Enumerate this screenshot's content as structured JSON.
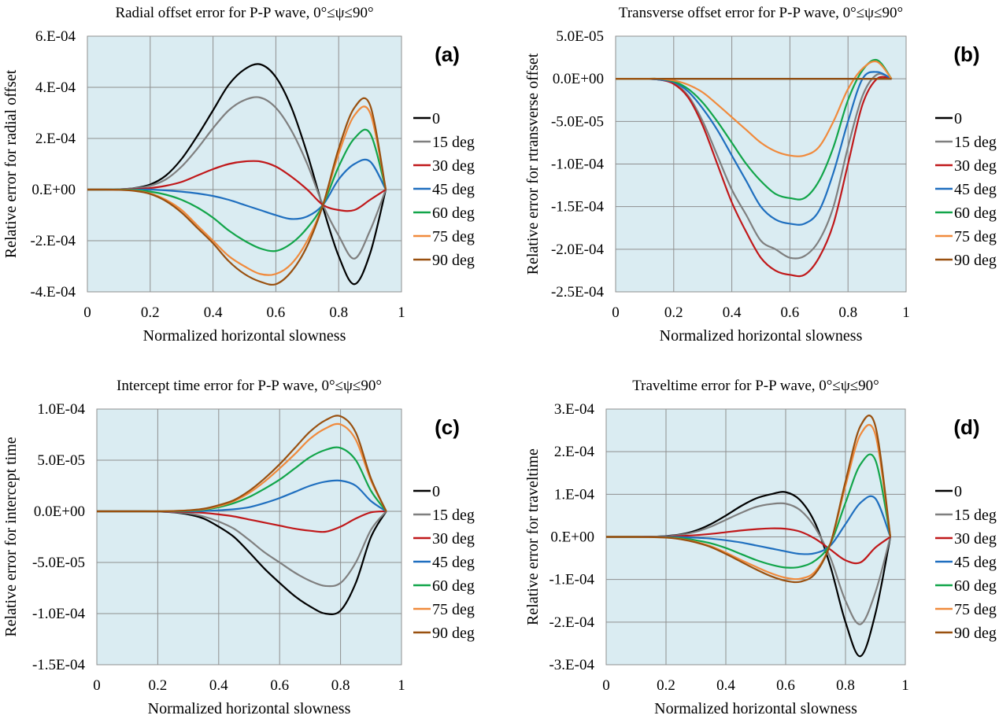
{
  "chart_data": [
    {
      "type": "line",
      "title": "Radial offset error for P-P wave, 0°≤ψ≤90°",
      "panel_label": "(a)",
      "xlabel": "Normalized horizontal slowness",
      "ylabel": "Relative error for radial offset",
      "xlim": [
        0,
        1
      ],
      "ylim": [
        -0.0004,
        0.0006
      ],
      "xticks": [
        0,
        0.2,
        0.4,
        0.6,
        0.8,
        1
      ],
      "xtick_labels": [
        "0",
        "0.2",
        "0.4",
        "0.6",
        "0.8",
        "1"
      ],
      "yticks": [
        -0.0004,
        -0.0002,
        0,
        0.0002,
        0.0004,
        0.0006
      ],
      "ytick_labels": [
        "-4.E-04",
        "-2.E-04",
        "0.E+00",
        "2.E-04",
        "4.E-04",
        "6.E-04"
      ],
      "grid": true,
      "legend_position": "right",
      "x": [
        0,
        0.05,
        0.1,
        0.15,
        0.2,
        0.25,
        0.3,
        0.35,
        0.4,
        0.45,
        0.5,
        0.55,
        0.6,
        0.65,
        0.7,
        0.75,
        0.8,
        0.85,
        0.9,
        0.95
      ],
      "series": [
        {
          "name": "0",
          "color": "#000000",
          "values": [
            0,
            0,
            1e-06,
            6e-06,
            2e-05,
            5.5e-05,
            0.00012,
            0.00021,
            0.00031,
            0.00041,
            0.00047,
            0.00049,
            0.00044,
            0.00032,
            0.00014,
            -7e-05,
            -0.00026,
            -0.00037,
            -0.00025,
            0
          ]
        },
        {
          "name": "15 deg",
          "color": "#7f7f7f",
          "values": [
            0,
            0,
            1e-06,
            5e-06,
            1.5e-05,
            4e-05,
            9e-05,
            0.00016,
            0.00024,
            0.00031,
            0.00035,
            0.00036,
            0.00032,
            0.00023,
            0.0001,
            -6e-05,
            -0.00018,
            -0.00027,
            -0.00016,
            0
          ]
        },
        {
          "name": "30 deg",
          "color": "#c0181a",
          "values": [
            0,
            0,
            0,
            2e-06,
            6e-06,
            1.5e-05,
            3e-05,
            5.5e-05,
            8e-05,
            0.0001,
            0.00011,
            0.00011,
            9e-05,
            5e-05,
            0,
            -6e-05,
            -8e-05,
            -8e-05,
            -4e-05,
            0
          ]
        },
        {
          "name": "45 deg",
          "color": "#1f6fbf",
          "values": [
            0,
            0,
            0,
            0,
            0,
            -3e-06,
            -8e-06,
            -1.5e-05,
            -2.5e-05,
            -4e-05,
            -6e-05,
            -8e-05,
            -0.0001,
            -0.000115,
            -0.000105,
            -6e-05,
            4e-05,
            0.0001,
            0.00011,
            0
          ]
        },
        {
          "name": "60 deg",
          "color": "#12a54a",
          "values": [
            0,
            0,
            0,
            -2e-06,
            -8e-06,
            -2e-05,
            -4e-05,
            -7e-05,
            -0.00011,
            -0.00016,
            -0.0002,
            -0.00023,
            -0.00024,
            -0.00021,
            -0.00015,
            -6e-05,
            9e-05,
            0.0002,
            0.00022,
            0
          ]
        },
        {
          "name": "75 deg",
          "color": "#f08a3c",
          "values": [
            0,
            0,
            -1e-06,
            -4e-06,
            -1.5e-05,
            -4e-05,
            -8e-05,
            -0.00014,
            -0.0002,
            -0.00026,
            -0.0003,
            -0.00033,
            -0.00033,
            -0.00029,
            -0.0002,
            -6e-05,
            0.00014,
            0.00029,
            0.0003,
            0
          ]
        },
        {
          "name": "90 deg",
          "color": "#99500f",
          "values": [
            0,
            0,
            -1e-06,
            -5e-06,
            -1.7e-05,
            -4.5e-05,
            -9e-05,
            -0.00015,
            -0.00021,
            -0.00028,
            -0.00033,
            -0.00036,
            -0.00037,
            -0.00032,
            -0.00022,
            -6e-05,
            0.00016,
            0.00032,
            0.00033,
            0
          ]
        }
      ]
    },
    {
      "type": "line",
      "title": "Transverse offset error for P-P wave, 0°≤ψ≤90°",
      "panel_label": "(b)",
      "xlabel": "Normalized horizontal slowness",
      "ylabel": "Relative error for rtransverse offset",
      "xlim": [
        0,
        1
      ],
      "ylim": [
        -0.00025,
        5e-05
      ],
      "xticks": [
        0,
        0.2,
        0.4,
        0.6,
        0.8,
        1
      ],
      "xtick_labels": [
        "0",
        "0.2",
        "0.4",
        "0.6",
        "0.8",
        "1"
      ],
      "yticks": [
        -0.00025,
        -0.0002,
        -0.00015,
        -0.0001,
        -5e-05,
        0,
        5e-05
      ],
      "ytick_labels": [
        "-2.5E-04",
        "-2.0E-04",
        "-1.5E-04",
        "-1.0E-04",
        "-5.0E-05",
        "0.0E+00",
        "5.0E-05"
      ],
      "grid": true,
      "legend_position": "right",
      "x": [
        0,
        0.05,
        0.1,
        0.15,
        0.2,
        0.25,
        0.3,
        0.35,
        0.4,
        0.45,
        0.5,
        0.55,
        0.6,
        0.65,
        0.7,
        0.75,
        0.8,
        0.85,
        0.9,
        0.95
      ],
      "series": [
        {
          "name": "0",
          "color": "#000000",
          "values": [
            0,
            0,
            0,
            0,
            0,
            0,
            0,
            0,
            0,
            0,
            0,
            0,
            0,
            0,
            0,
            0,
            0,
            0,
            0,
            0
          ]
        },
        {
          "name": "15 deg",
          "color": "#7f7f7f",
          "values": [
            0,
            0,
            0,
            -1e-06,
            -5e-06,
            -2e-05,
            -5e-05,
            -9e-05,
            -0.00013,
            -0.00016,
            -0.00019,
            -0.0002,
            -0.00021,
            -0.000208,
            -0.00019,
            -0.00015,
            -8e-05,
            -2e-05,
            5e-06,
            0
          ]
        },
        {
          "name": "30 deg",
          "color": "#c0181a",
          "values": [
            0,
            0,
            0,
            -1e-06,
            -6e-06,
            -2.2e-05,
            -5.5e-05,
            -0.0001,
            -0.000145,
            -0.00018,
            -0.00021,
            -0.000225,
            -0.00023,
            -0.00023,
            -0.00021,
            -0.00017,
            -0.0001,
            -3e-05,
            0,
            0
          ]
        },
        {
          "name": "45 deg",
          "color": "#1f6fbf",
          "values": [
            0,
            0,
            0,
            -1e-06,
            -4e-06,
            -1.5e-05,
            -3.5e-05,
            -6e-05,
            -9e-05,
            -0.00012,
            -0.00015,
            -0.000165,
            -0.00017,
            -0.00017,
            -0.000155,
            -0.00011,
            -5e-05,
            0,
            8e-06,
            0
          ]
        },
        {
          "name": "60 deg",
          "color": "#12a54a",
          "values": [
            0,
            0,
            0,
            0,
            -3e-06,
            -1.2e-05,
            -2.8e-05,
            -5e-05,
            -7.5e-05,
            -0.0001,
            -0.00012,
            -0.000135,
            -0.00014,
            -0.00014,
            -0.00012,
            -8e-05,
            -2.5e-05,
            1e-05,
            2.2e-05,
            0
          ]
        },
        {
          "name": "75 deg",
          "color": "#f08a3c",
          "values": [
            0,
            0,
            0,
            0,
            -2e-06,
            -7e-06,
            -1.6e-05,
            -3e-05,
            -4.5e-05,
            -6e-05,
            -7.5e-05,
            -8.5e-05,
            -9e-05,
            -9e-05,
            -8e-05,
            -5e-05,
            -1.2e-05,
            1.2e-05,
            2e-05,
            0
          ]
        },
        {
          "name": "90 deg",
          "color": "#99500f",
          "values": [
            0,
            0,
            0,
            0,
            0,
            0,
            0,
            0,
            0,
            0,
            0,
            0,
            0,
            0,
            0,
            0,
            0,
            0,
            0,
            0
          ]
        }
      ]
    },
    {
      "type": "line",
      "title": "Intercept time error for P-P wave, 0°≤ψ≤90°",
      "panel_label": "(c)",
      "xlabel": "Normalized horizontal slowness",
      "ylabel": "Relative error for intercept time",
      "xlim": [
        0,
        1
      ],
      "ylim": [
        -0.00015,
        0.0001
      ],
      "xticks": [
        0,
        0.2,
        0.4,
        0.6,
        0.8,
        1
      ],
      "xtick_labels": [
        "0",
        "0.2",
        "0.4",
        "0.6",
        "0.8",
        "1"
      ],
      "yticks": [
        -0.00015,
        -0.0001,
        -5e-05,
        0,
        5e-05,
        0.0001
      ],
      "ytick_labels": [
        "-1.5E-04",
        "-1.0E-04",
        "-5.0E-05",
        "0.0E+00",
        "5.0E-05",
        "1.0E-04"
      ],
      "grid": true,
      "legend_position": "right",
      "x": [
        0,
        0.05,
        0.1,
        0.15,
        0.2,
        0.25,
        0.3,
        0.35,
        0.4,
        0.45,
        0.5,
        0.55,
        0.6,
        0.65,
        0.7,
        0.75,
        0.8,
        0.85,
        0.9,
        0.95
      ],
      "series": [
        {
          "name": "0",
          "color": "#000000",
          "values": [
            0,
            0,
            0,
            0,
            -2e-07,
            -1e-06,
            -3e-06,
            -7e-06,
            -1.5e-05,
            -2.5e-05,
            -4e-05,
            -5.6e-05,
            -7e-05,
            -8.3e-05,
            -9.3e-05,
            -0.0001,
            -9.7e-05,
            -7e-05,
            -2.5e-05,
            0
          ]
        },
        {
          "name": "15 deg",
          "color": "#7f7f7f",
          "values": [
            0,
            0,
            0,
            0,
            -2e-07,
            -8e-07,
            -2e-06,
            -5e-06,
            -1e-05,
            -1.7e-05,
            -2.8e-05,
            -4e-05,
            -5e-05,
            -6e-05,
            -6.8e-05,
            -7.3e-05,
            -7e-05,
            -5e-05,
            -1.8e-05,
            0
          ]
        },
        {
          "name": "30 deg",
          "color": "#c0181a",
          "values": [
            0,
            0,
            0,
            0,
            0,
            -3e-07,
            -7e-07,
            -1.5e-06,
            -3e-06,
            -5e-06,
            -8e-06,
            -1.1e-05,
            -1.4e-05,
            -1.7e-05,
            -1.9e-05,
            -2e-05,
            -1.5e-05,
            -7e-06,
            -1e-06,
            0
          ]
        },
        {
          "name": "45 deg",
          "color": "#1f6fbf",
          "values": [
            0,
            0,
            0,
            0,
            0,
            0,
            0,
            3e-07,
            1e-06,
            2e-06,
            4e-06,
            8e-06,
            1.3e-05,
            1.9e-05,
            2.5e-05,
            2.9e-05,
            3e-05,
            2.5e-05,
            1e-05,
            0
          ]
        },
        {
          "name": "60 deg",
          "color": "#12a54a",
          "values": [
            0,
            0,
            0,
            0,
            0,
            2e-07,
            6e-07,
            1.5e-06,
            4e-06,
            8e-06,
            1.4e-05,
            2.2e-05,
            3.1e-05,
            4.2e-05,
            5.3e-05,
            6e-05,
            6.2e-05,
            5e-05,
            2e-05,
            0
          ]
        },
        {
          "name": "75 deg",
          "color": "#f08a3c",
          "values": [
            0,
            0,
            0,
            0,
            0,
            3e-07,
            9e-07,
            2e-06,
            5e-06,
            1e-05,
            1.8e-05,
            2.9e-05,
            4.2e-05,
            5.6e-05,
            7.1e-05,
            8.1e-05,
            8.5e-05,
            7e-05,
            3e-05,
            0
          ]
        },
        {
          "name": "90 deg",
          "color": "#99500f",
          "values": [
            0,
            0,
            0,
            0,
            0,
            3e-07,
            1e-06,
            2.5e-06,
            6e-06,
            1.1e-05,
            2e-05,
            3.2e-05,
            4.6e-05,
            6.2e-05,
            7.8e-05,
            8.9e-05,
            9.3e-05,
            7.7e-05,
            3.2e-05,
            0
          ]
        }
      ]
    },
    {
      "type": "line",
      "title": "Traveltime error for P-P wave, 0°≤ψ≤90°",
      "panel_label": "(d)",
      "xlabel": "Normalized horizontal slowness",
      "ylabel": "Relative error for traveltime",
      "xlim": [
        0,
        1
      ],
      "ylim": [
        -0.0003,
        0.0003
      ],
      "xticks": [
        0,
        0.2,
        0.4,
        0.6,
        0.8,
        1
      ],
      "xtick_labels": [
        "0",
        "0.2",
        "0.4",
        "0.6",
        "0.8",
        "1"
      ],
      "yticks": [
        -0.0003,
        -0.0002,
        -0.0001,
        0,
        0.0001,
        0.0002,
        0.0003
      ],
      "ytick_labels": [
        "-3.E-04",
        "-2.E-04",
        "-1.E-04",
        "0.E+00",
        "1.E-04",
        "2.E-04",
        "3.E-04"
      ],
      "grid": true,
      "legend_position": "right",
      "x": [
        0,
        0.05,
        0.1,
        0.15,
        0.2,
        0.25,
        0.3,
        0.35,
        0.4,
        0.45,
        0.5,
        0.55,
        0.6,
        0.65,
        0.7,
        0.75,
        0.8,
        0.85,
        0.9,
        0.95
      ],
      "series": [
        {
          "name": "0",
          "color": "#000000",
          "values": [
            0,
            0,
            0,
            5e-07,
            2e-06,
            6e-06,
            1.5e-05,
            3e-05,
            5e-05,
            7.2e-05,
            9e-05,
            0.0001,
            0.000105,
            8.5e-05,
            3e-05,
            -7e-05,
            -0.0002,
            -0.00028,
            -0.00018,
            0
          ]
        },
        {
          "name": "15 deg",
          "color": "#7f7f7f",
          "values": [
            0,
            0,
            0,
            4e-07,
            1.5e-06,
            5e-06,
            1.2e-05,
            2.4e-05,
            4e-05,
            5.6e-05,
            7e-05,
            7.7e-05,
            7.8e-05,
            6.2e-05,
            2e-05,
            -5e-05,
            -0.00015,
            -0.000205,
            -0.00013,
            0
          ]
        },
        {
          "name": "30 deg",
          "color": "#c0181a",
          "values": [
            0,
            0,
            0,
            0,
            5e-07,
            2e-06,
            4e-06,
            7e-06,
            1.1e-05,
            1.5e-05,
            1.8e-05,
            2e-05,
            1.9e-05,
            1.2e-05,
            -5e-06,
            -3e-05,
            -5.5e-05,
            -6e-05,
            -2.5e-05,
            0
          ]
        },
        {
          "name": "45 deg",
          "color": "#1f6fbf",
          "values": [
            0,
            0,
            0,
            0,
            0,
            -7e-07,
            -2e-06,
            -4e-06,
            -8e-06,
            -1.3e-05,
            -2e-05,
            -2.7e-05,
            -3.4e-05,
            -4e-05,
            -3.8e-05,
            -2e-05,
            3e-05,
            8e-05,
            9e-05,
            0
          ]
        },
        {
          "name": "60 deg",
          "color": "#12a54a",
          "values": [
            0,
            0,
            0,
            -3e-07,
            -1e-06,
            -3e-06,
            -8e-06,
            -1.5e-05,
            -2.6e-05,
            -4e-05,
            -5.4e-05,
            -6.5e-05,
            -7.2e-05,
            -7e-05,
            -5.5e-05,
            -1.5e-05,
            8e-05,
            0.00017,
            0.00018,
            0
          ]
        },
        {
          "name": "75 deg",
          "color": "#f08a3c",
          "values": [
            0,
            0,
            0,
            -4e-07,
            -1.5e-06,
            -5e-06,
            -1.2e-05,
            -2.2e-05,
            -3.7e-05,
            -5.4e-05,
            -7e-05,
            -8.5e-05,
            -9.6e-05,
            -9.8e-05,
            -8e-05,
            -1.5e-05,
            0.00012,
            0.00024,
            0.00024,
            0
          ]
        },
        {
          "name": "90 deg",
          "color": "#99500f",
          "values": [
            0,
            0,
            0,
            -5e-07,
            -1.7e-06,
            -5.5e-06,
            -1.3e-05,
            -2.4e-05,
            -4e-05,
            -5.8e-05,
            -7.6e-05,
            -9.2e-05,
            -0.000103,
            -0.000105,
            -8.5e-05,
            -1.5e-05,
            0.00013,
            0.00026,
            0.00026,
            0
          ]
        }
      ]
    }
  ]
}
